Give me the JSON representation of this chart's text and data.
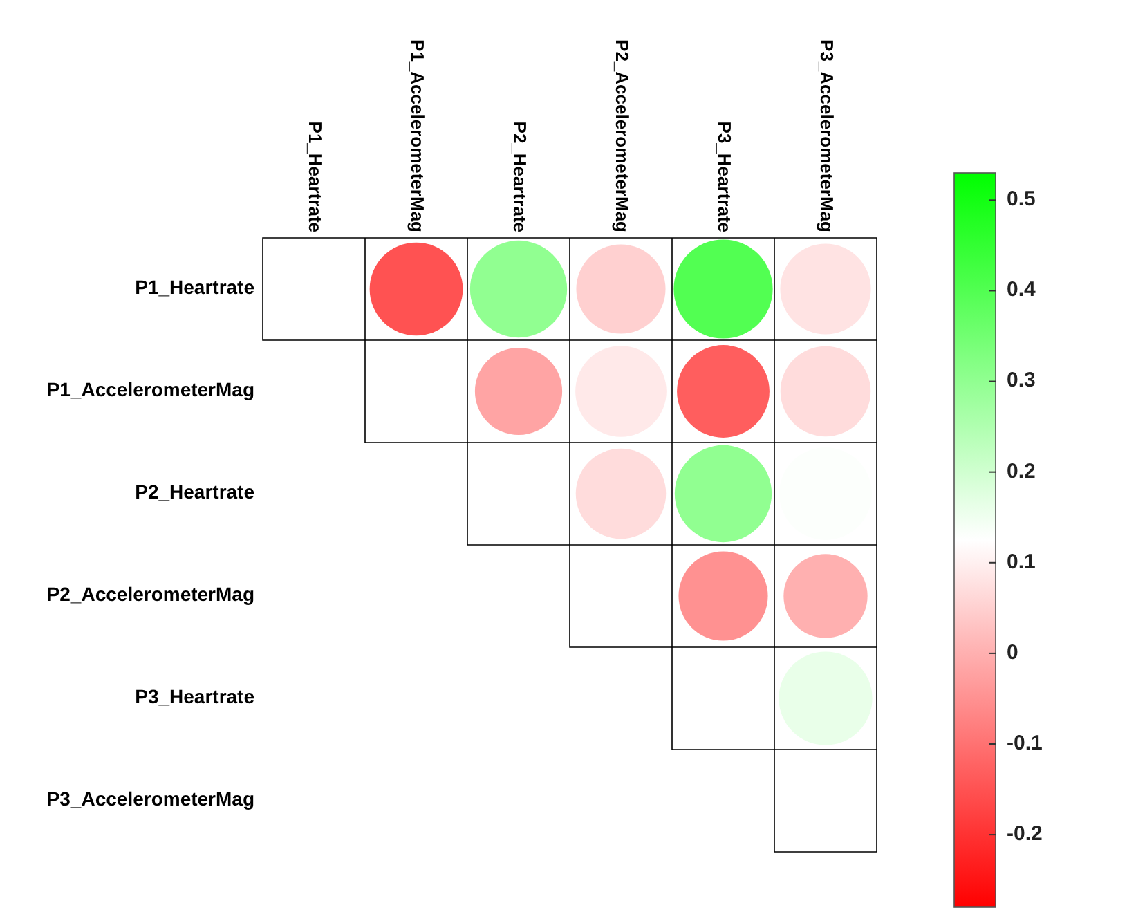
{
  "chart_data": {
    "type": "heatmap",
    "categories": [
      "P1_Heartrate",
      "P1_AccelerometerMag",
      "P2_Heartrate",
      "P2_AccelerometerMag",
      "P3_Heartrate",
      "P3_AccelerometerMag"
    ],
    "y_categories": [
      "P1_Heartrate",
      "P1_AccelerometerMag",
      "P2_Heartrate",
      "P2_AccelerometerMag",
      "P3_Heartrate",
      "P3_AccelerometerMag"
    ],
    "cells": [
      [
        null,
        -0.15,
        0.3,
        0.05,
        0.4,
        0.08
      ],
      [
        null,
        null,
        -0.02,
        0.09,
        -0.13,
        0.07
      ],
      [
        null,
        null,
        null,
        0.07,
        0.3,
        0.13
      ],
      [
        null,
        null,
        null,
        null,
        -0.05,
        0.0
      ],
      [
        null,
        null,
        null,
        null,
        null,
        0.16
      ],
      [
        null,
        null,
        null,
        null,
        null,
        null
      ]
    ],
    "clim": [
      -0.28,
      0.53
    ],
    "cticks": [
      -0.2,
      -0.1,
      0,
      0.1,
      0.2,
      0.3,
      0.4,
      0.5
    ]
  }
}
